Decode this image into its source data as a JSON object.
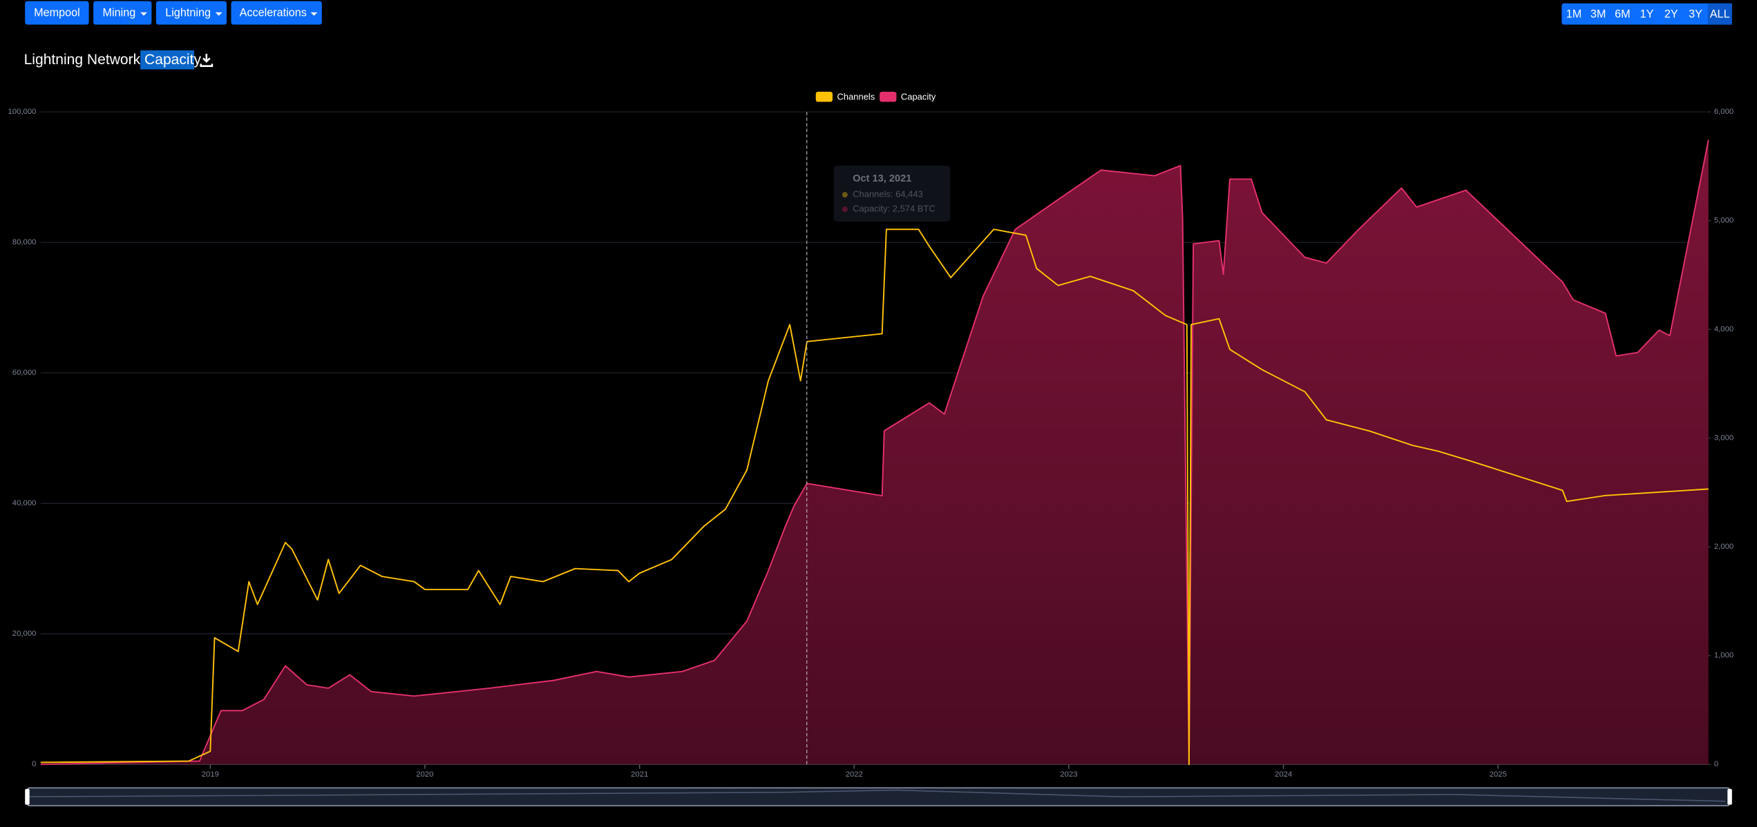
{
  "nav": {
    "buttons": [
      "Mempool",
      "Mining",
      "Lightning",
      "Accelerations"
    ],
    "ranges": [
      "1M",
      "3M",
      "6M",
      "1Y",
      "2Y",
      "3Y",
      "ALL"
    ]
  },
  "title": "Lightning Network Capacity",
  "tooltip": {
    "date": "Oct 13, 2021",
    "channels": "Channels: 64,443",
    "capacity": "Capacity: 2,574 BTC"
  },
  "chart_data": {
    "type": "line",
    "xlim": [
      2018.21,
      2025.98
    ],
    "xticks": [
      2019,
      2020,
      2021,
      2022,
      2023,
      2024,
      2025
    ],
    "ylim": [
      0,
      100000
    ],
    "yticks": [
      0,
      {
        "value": 20000,
        "label": "20,000"
      },
      {
        "value": 40000,
        "label": "40,000"
      },
      {
        "value": 60000,
        "label": "60,000"
      },
      {
        "value": 80000,
        "label": "80,000"
      },
      {
        "value": 100000,
        "label": "100,000"
      }
    ],
    "y2lim": [
      0,
      6000
    ],
    "y2ticks": [
      0,
      {
        "value": 1000,
        "label": "1,000"
      },
      {
        "value": 2000,
        "label": "2,000"
      },
      {
        "value": 3000,
        "label": "3,000"
      },
      {
        "value": 4000,
        "label": "4,000"
      },
      {
        "value": 5000,
        "label": "5,000"
      },
      {
        "value": 6000,
        "label": "6,000"
      }
    ],
    "grid": true,
    "series": [
      {
        "name": "Channels",
        "color": "#ffc107",
        "x": [
          2018.21,
          2018.9,
          2019.0,
          2019.02,
          2019.13,
          2019.18,
          2019.22,
          2019.35,
          2019.38,
          2019.5,
          2019.55,
          2019.6,
          2019.7,
          2019.8,
          2019.95,
          2020.0,
          2020.2,
          2020.25,
          2020.35,
          2020.4,
          2020.55,
          2020.7,
          2020.9,
          2020.95,
          2021.0,
          2021.15,
          2021.3,
          2021.4,
          2021.5,
          2021.6,
          2021.7,
          2021.75,
          2021.78,
          2022.13,
          2022.15,
          2022.3,
          2022.35,
          2022.45,
          2022.65,
          2022.8,
          2022.85,
          2022.95,
          2023.1,
          2023.3,
          2023.45,
          2023.55,
          2023.56,
          2023.57,
          2023.7,
          2023.75,
          2023.9,
          2024.1,
          2024.2,
          2024.4,
          2024.6,
          2024.72,
          2024.87,
          2025.3,
          2025.32,
          2025.5,
          2025.98
        ],
        "values": [
          300,
          500,
          2000,
          19400,
          17300,
          28000,
          24500,
          34000,
          33000,
          25200,
          31400,
          26200,
          30500,
          28800,
          28000,
          26800,
          26800,
          29700,
          24500,
          28800,
          28000,
          30000,
          29700,
          28000,
          29300,
          31400,
          36500,
          39100,
          45100,
          58800,
          67400,
          58800,
          64800,
          66000,
          82000,
          82000,
          79400,
          74600,
          82000,
          81100,
          76000,
          73400,
          74800,
          72600,
          68800,
          67400,
          0,
          67400,
          68300,
          63600,
          60500,
          57100,
          52800,
          51100,
          48900,
          48000,
          46500,
          42000,
          40300,
          41200,
          42200
        ]
      },
      {
        "name": "Capacity",
        "color": "#e3306c",
        "axis": "y2",
        "x": [
          2018.21,
          2018.95,
          2019.05,
          2019.15,
          2019.25,
          2019.35,
          2019.45,
          2019.55,
          2019.65,
          2019.75,
          2019.95,
          2020.3,
          2020.6,
          2020.8,
          2020.95,
          2021.2,
          2021.35,
          2021.5,
          2021.6,
          2021.68,
          2021.72,
          2021.78,
          2022.13,
          2022.14,
          2022.35,
          2022.42,
          2022.6,
          2022.75,
          2022.9,
          2023.15,
          2023.4,
          2023.52,
          2023.53,
          2023.56,
          2023.58,
          2023.7,
          2023.72,
          2023.75,
          2023.85,
          2023.9,
          2024.1,
          2024.2,
          2024.35,
          2024.55,
          2024.62,
          2024.85,
          2025.3,
          2025.35,
          2025.5,
          2025.55,
          2025.65,
          2025.75,
          2025.8,
          2025.98
        ],
        "values": [
          0,
          30,
          494,
          494,
          597,
          906,
          731,
          700,
          823,
          669,
          628,
          700,
          772,
          854,
          803,
          854,
          957,
          1317,
          1780,
          2192,
          2377,
          2583,
          2470,
          3067,
          3324,
          3221,
          4302,
          4919,
          5125,
          5465,
          5413,
          5506,
          5022,
          0,
          4786,
          4816,
          4508,
          5382,
          5382,
          5074,
          4662,
          4610,
          4919,
          5300,
          5125,
          5280,
          4436,
          4271,
          4148,
          3756,
          3787,
          3993,
          3942,
          5743
        ]
      }
    ]
  }
}
